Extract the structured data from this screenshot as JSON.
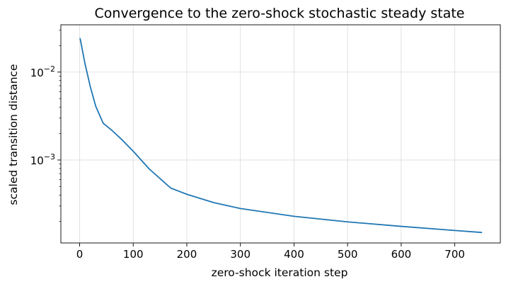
{
  "chart_data": {
    "type": "line",
    "title": "Convergence to the zero-shock stochastic steady state",
    "xlabel": "zero-shock iteration step",
    "ylabel": "scaled transition distance",
    "xlim": [
      -35,
      785
    ],
    "ylim": [
      0.000114,
      0.0345
    ],
    "yscale": "log",
    "grid": true,
    "x_ticks": [
      0,
      100,
      200,
      300,
      400,
      500,
      600,
      700
    ],
    "y_ticks": [
      {
        "value": 0.001,
        "base": "10",
        "exponent": "−3"
      },
      {
        "value": 0.01,
        "base": "10",
        "exponent": "−2"
      }
    ],
    "y_minor_ticks": [
      0.0002,
      0.0003,
      0.0004,
      0.0005,
      0.0006,
      0.0007,
      0.0008,
      0.0009,
      0.002,
      0.003,
      0.004,
      0.005,
      0.006,
      0.007,
      0.008,
      0.009,
      0.02,
      0.03
    ],
    "series": [
      {
        "color": "#1f77b4",
        "x": [
          1,
          10,
          20,
          30,
          44,
          60,
          80,
          100,
          130,
          170,
          200,
          250,
          300,
          400,
          500,
          600,
          700,
          750
        ],
        "values": [
          0.024,
          0.0125,
          0.0068,
          0.0041,
          0.00262,
          0.00218,
          0.00168,
          0.00126,
          0.00079,
          0.00048,
          0.000408,
          0.000328,
          0.000281,
          0.000229,
          0.000198,
          0.000176,
          0.000158,
          0.00015
        ]
      }
    ]
  }
}
